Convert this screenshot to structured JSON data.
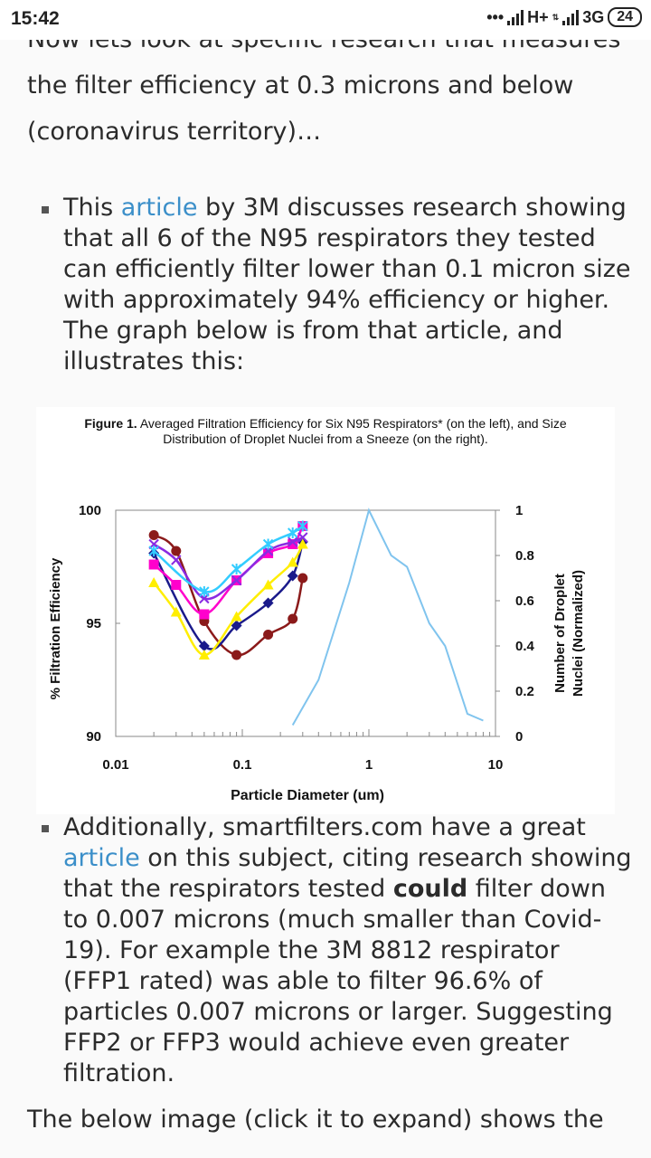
{
  "status_bar": {
    "time": "15:42",
    "dots": "•••",
    "network_1": "H+",
    "network_2": "3G",
    "battery": "24"
  },
  "article": {
    "intro_text": "Now lets look at specific research that measures the filter efficiency at 0.3 microns and below (coronavirus territory)…",
    "bullet1": {
      "before_link": "This ",
      "link_text": "article",
      "after_link": " by 3M discusses research showing that all 6 of the N95 respirators they tested can efficiently filter lower than 0.1 micron size with approximately 94% efficiency or higher. The graph below is from that article, and illustrates this:"
    },
    "bullet2": {
      "part1": "Additionally, smartfilters.com have a great ",
      "link_text": "article",
      "part2": " on this subject, citing research showing that the respirators tested ",
      "bold": "could",
      "part3": " filter down to 0.007 microns (much smaller than Covid-19). For example the 3M 8812 respirator (FFP1 rated) was able to filter 96.6% of particles 0.007 microns or larger. Suggesting FFP2 or FFP3 would achieve even greater filtration."
    },
    "outro_text": "The below image (click it to expand) shows the"
  },
  "chart_data": {
    "type": "line",
    "title_bold": "Figure 1.",
    "title": "Averaged Filtration Efficiency for Six N95 Respirators* (on the left), and Size Distribution of Droplet Nuclei from a Sneeze (on the right).",
    "xlabel": "Particle Diameter (um)",
    "ylabel": "% Filtration Efficiency",
    "y2label_line1": "Number of Droplet",
    "y2label_line2": "Nuclei (Normalized)",
    "x_scale": "log",
    "xlim": [
      0.01,
      10
    ],
    "ylim": [
      90,
      100
    ],
    "y2lim": [
      0,
      1
    ],
    "x_ticks": [
      "0.01",
      "0.1",
      "1",
      "10"
    ],
    "y_ticks": [
      "90",
      "95",
      "100"
    ],
    "y2_ticks": [
      "0",
      "0.2",
      "0.4",
      "0.6",
      "0.8",
      "1"
    ],
    "series": [
      {
        "color": "#8b1a1a",
        "marker": "circle",
        "x": [
          0.02,
          0.03,
          0.05,
          0.09,
          0.16,
          0.25,
          0.3
        ],
        "y": [
          98.9,
          98.2,
          95.1,
          93.6,
          94.5,
          95.2,
          97.0
        ]
      },
      {
        "color": "#1a1a8b",
        "marker": "diamond",
        "x": [
          0.02,
          0.05,
          0.09,
          0.16,
          0.25,
          0.3
        ],
        "y": [
          98.1,
          94.0,
          94.9,
          95.9,
          97.1,
          98.6
        ]
      },
      {
        "color": "#ffee00",
        "marker": "triangle",
        "x": [
          0.02,
          0.03,
          0.05,
          0.09,
          0.16,
          0.25,
          0.3
        ],
        "y": [
          96.8,
          95.5,
          93.6,
          95.3,
          96.7,
          97.7,
          98.5
        ]
      },
      {
        "color": "#ff00cc",
        "marker": "square",
        "x": [
          0.02,
          0.03,
          0.05,
          0.09,
          0.16,
          0.25,
          0.3
        ],
        "y": [
          97.6,
          96.7,
          95.4,
          96.9,
          98.1,
          98.5,
          99.3
        ]
      },
      {
        "color": "#8a2be2",
        "marker": "x",
        "x": [
          0.02,
          0.03,
          0.05,
          0.09,
          0.16,
          0.25,
          0.3
        ],
        "y": [
          98.5,
          97.8,
          96.1,
          96.9,
          98.2,
          98.6,
          98.8
        ]
      },
      {
        "color": "#33ccff",
        "marker": "asterisk",
        "x": [
          0.02,
          0.05,
          0.09,
          0.16,
          0.25,
          0.3
        ],
        "y": [
          98.2,
          96.4,
          97.4,
          98.5,
          99.0,
          99.3
        ]
      },
      {
        "color": "#80c4ee",
        "marker": "none",
        "axis": "right",
        "x": [
          0.25,
          0.4,
          0.7,
          1.0,
          1.5,
          2.0,
          3.0,
          4.0,
          6.0,
          8.0
        ],
        "y": [
          0.05,
          0.25,
          0.68,
          1.0,
          0.8,
          0.75,
          0.5,
          0.4,
          0.1,
          0.07
        ]
      }
    ]
  }
}
